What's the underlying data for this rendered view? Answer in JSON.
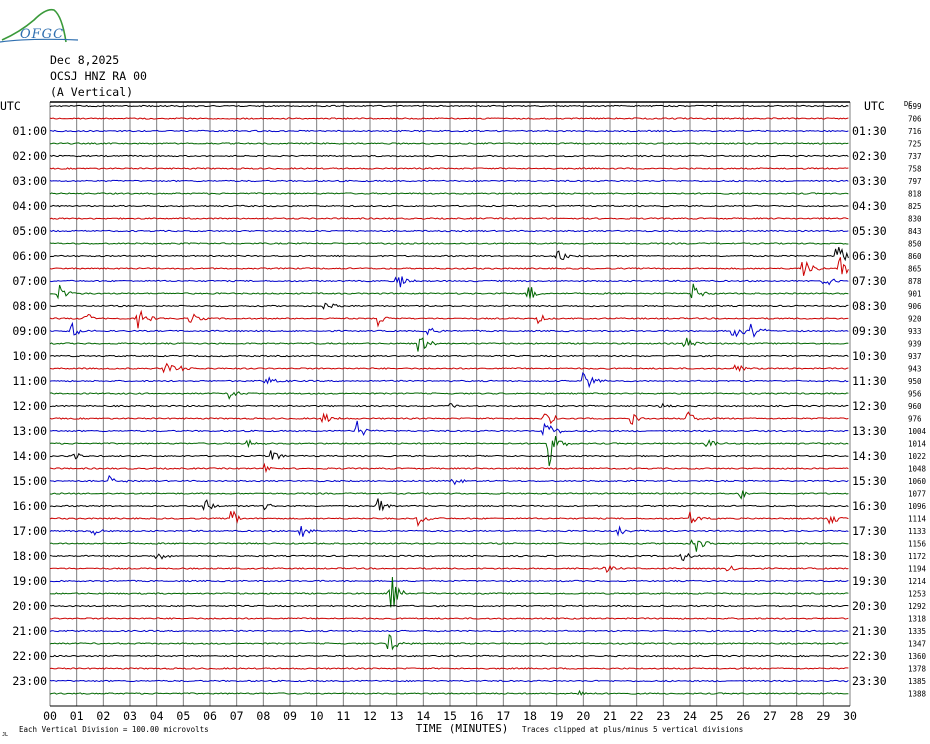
{
  "header": {
    "logo_text": "OFGC",
    "date": "Dec 8,2025",
    "station": "OCSJ HNZ RA 00",
    "component": "(A Vertical)"
  },
  "chart_data": {
    "type": "line",
    "xlabel": "TIME (MINUTES)",
    "x_tick_labels": [
      "00",
      "01",
      "02",
      "03",
      "04",
      "05",
      "06",
      "07",
      "08",
      "09",
      "10",
      "11",
      "12",
      "13",
      "14",
      "15",
      "16",
      "17",
      "18",
      "19",
      "20",
      "21",
      "22",
      "23",
      "24",
      "25",
      "26",
      "27",
      "28",
      "29",
      "30"
    ],
    "xlim": [
      0,
      30
    ],
    "left_axis_title": "UTC",
    "right_axis_title": "UTC",
    "left_hour_labels": [
      "01:00",
      "02:00",
      "03:00",
      "04:00",
      "05:00",
      "06:00",
      "07:00",
      "08:00",
      "09:00",
      "10:00",
      "11:00",
      "12:00",
      "13:00",
      "14:00",
      "15:00",
      "16:00",
      "17:00",
      "18:00",
      "19:00",
      "20:00",
      "21:00",
      "22:00",
      "23:00"
    ],
    "right_hour_labels": [
      "01:30",
      "02:30",
      "03:30",
      "04:30",
      "05:30",
      "06:30",
      "07:30",
      "08:30",
      "09:30",
      "10:30",
      "11:30",
      "12:30",
      "13:30",
      "14:30",
      "15:30",
      "16:30",
      "17:30",
      "18:30",
      "19:30",
      "20:30",
      "21:30",
      "22:30",
      "23:30"
    ],
    "right_scale_title": "DC",
    "trace_dc_values": [
      "699",
      "706",
      "716",
      "725",
      "737",
      "758",
      "797",
      "818",
      "825",
      "830",
      "843",
      "850",
      "860",
      "865",
      "878",
      "901",
      "906",
      "920",
      "933",
      "939",
      "937",
      "943",
      "950",
      "956",
      "960",
      "976",
      "1004",
      "1014",
      "1022",
      "1048",
      "1060",
      "1077",
      "1096",
      "1114",
      "1133",
      "1156",
      "1172",
      "1194",
      "1214",
      "1253",
      "1292",
      "1318",
      "1335",
      "1347",
      "1360",
      "1378",
      "1385",
      "1388"
    ],
    "trace_colors": [
      "#000000",
      "#cc0000",
      "#0000cc",
      "#006600"
    ],
    "grid": true,
    "footer_left": "Each Vertical Division =  100.00 microvolts",
    "footer_right": "Traces clipped at plus/minus 5 vertical divisions",
    "corner_mark": "JL",
    "events": [
      {
        "trace": 12,
        "minute": 19.0,
        "amp": 12
      },
      {
        "trace": 13,
        "minute": 28.2,
        "amp": 14
      },
      {
        "trace": 13,
        "minute": 29.6,
        "amp": 14
      },
      {
        "trace": 12,
        "minute": 29.5,
        "amp": 18
      },
      {
        "trace": 14,
        "minute": 13.0,
        "amp": 14
      },
      {
        "trace": 14,
        "minute": 29.0,
        "amp": 10
      },
      {
        "trace": 15,
        "minute": 0.3,
        "amp": 12
      },
      {
        "trace": 15,
        "minute": 17.9,
        "amp": 12
      },
      {
        "trace": 15,
        "minute": 24.1,
        "amp": 10
      },
      {
        "trace": 16,
        "minute": 10.3,
        "amp": 6
      },
      {
        "trace": 17,
        "minute": 1.3,
        "amp": 8
      },
      {
        "trace": 17,
        "minute": 3.3,
        "amp": 12
      },
      {
        "trace": 17,
        "minute": 5.2,
        "amp": 8
      },
      {
        "trace": 17,
        "minute": 12.3,
        "amp": 8
      },
      {
        "trace": 17,
        "minute": 18.3,
        "amp": 6
      },
      {
        "trace": 18,
        "minute": 0.8,
        "amp": 9
      },
      {
        "trace": 18,
        "minute": 14.2,
        "amp": 6
      },
      {
        "trace": 18,
        "minute": 25.6,
        "amp": 14
      },
      {
        "trace": 18,
        "minute": 26.3,
        "amp": 10
      },
      {
        "trace": 19,
        "minute": 13.8,
        "amp": 12
      },
      {
        "trace": 19,
        "minute": 23.8,
        "amp": 8
      },
      {
        "trace": 21,
        "minute": 4.3,
        "amp": 10
      },
      {
        "trace": 21,
        "minute": 4.9,
        "amp": 8
      },
      {
        "trace": 21,
        "minute": 25.7,
        "amp": 8
      },
      {
        "trace": 22,
        "minute": 8.1,
        "amp": 8
      },
      {
        "trace": 22,
        "minute": 20.0,
        "amp": 14
      },
      {
        "trace": 23,
        "minute": 6.7,
        "amp": 6
      },
      {
        "trace": 24,
        "minute": 14.9,
        "amp": 5
      },
      {
        "trace": 24,
        "minute": 22.9,
        "amp": 5
      },
      {
        "trace": 25,
        "minute": 10.2,
        "amp": 8
      },
      {
        "trace": 25,
        "minute": 18.5,
        "amp": 14
      },
      {
        "trace": 25,
        "minute": 21.8,
        "amp": 8
      },
      {
        "trace": 25,
        "minute": 23.9,
        "amp": 8
      },
      {
        "trace": 26,
        "minute": 11.5,
        "amp": 12
      },
      {
        "trace": 26,
        "minute": 18.5,
        "amp": 20
      },
      {
        "trace": 27,
        "minute": 18.7,
        "amp": 24
      },
      {
        "trace": 27,
        "minute": 7.4,
        "amp": 6
      },
      {
        "trace": 27,
        "minute": 24.6,
        "amp": 6
      },
      {
        "trace": 28,
        "minute": 0.9,
        "amp": 5
      },
      {
        "trace": 28,
        "minute": 8.3,
        "amp": 8
      },
      {
        "trace": 29,
        "minute": 8.0,
        "amp": 6
      },
      {
        "trace": 30,
        "minute": 2.2,
        "amp": 6
      },
      {
        "trace": 30,
        "minute": 15.1,
        "amp": 5
      },
      {
        "trace": 31,
        "minute": 25.9,
        "amp": 6
      },
      {
        "trace": 32,
        "minute": 5.8,
        "amp": 8
      },
      {
        "trace": 32,
        "minute": 8.0,
        "amp": 10
      },
      {
        "trace": 32,
        "minute": 12.3,
        "amp": 10
      },
      {
        "trace": 33,
        "minute": 6.8,
        "amp": 10
      },
      {
        "trace": 33,
        "minute": 13.8,
        "amp": 8
      },
      {
        "trace": 33,
        "minute": 24.0,
        "amp": 8
      },
      {
        "trace": 33,
        "minute": 29.2,
        "amp": 8
      },
      {
        "trace": 34,
        "minute": 1.6,
        "amp": 8
      },
      {
        "trace": 34,
        "minute": 9.4,
        "amp": 10
      },
      {
        "trace": 34,
        "minute": 21.3,
        "amp": 6
      },
      {
        "trace": 35,
        "minute": 24.1,
        "amp": 16
      },
      {
        "trace": 36,
        "minute": 4.0,
        "amp": 6
      },
      {
        "trace": 36,
        "minute": 23.7,
        "amp": 6
      },
      {
        "trace": 37,
        "minute": 20.8,
        "amp": 6
      },
      {
        "trace": 37,
        "minute": 25.4,
        "amp": 5
      },
      {
        "trace": 39,
        "minute": 12.7,
        "amp": 30
      },
      {
        "trace": 43,
        "minute": 12.7,
        "amp": 12
      },
      {
        "trace": 47,
        "minute": 19.8,
        "amp": 4
      }
    ]
  }
}
